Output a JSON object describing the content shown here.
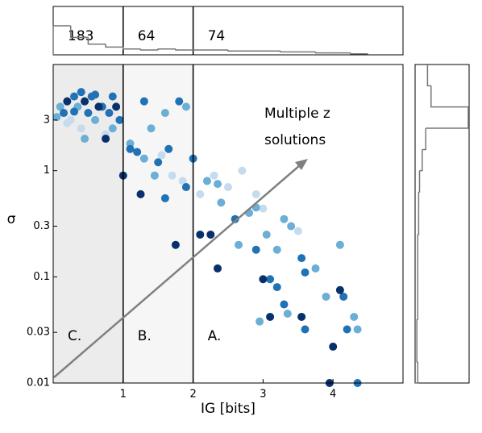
{
  "chart_data": {
    "type": "scatter",
    "xlabel": "IG [bits]",
    "ylabel": "σ",
    "xlim": [
      0,
      5
    ],
    "ylim": [
      0.01,
      10
    ],
    "log_y": true,
    "xticks": [
      1,
      2,
      3,
      4
    ],
    "yticks": [
      0.01,
      0.03,
      0.1,
      0.3,
      1,
      3
    ],
    "boundaries": [
      1,
      2
    ],
    "region_labels": [
      "C.",
      "B.",
      "A."
    ],
    "region_counts": [
      183,
      64,
      74
    ],
    "annotation": [
      "Multiple z",
      "solutions"
    ],
    "series": [
      {
        "color": "#c6dbef",
        "x": [
          0.25,
          0.4,
          0.75,
          0.2,
          1.55,
          1.7,
          1.85,
          2.1,
          2.3,
          2.5,
          2.7,
          3.0,
          2.9,
          3.5
        ],
        "values": [
          3,
          2.5,
          2.2,
          2.8,
          1.4,
          0.9,
          0.8,
          0.6,
          0.9,
          0.7,
          1.0,
          0.44,
          0.6,
          0.27
        ]
      },
      {
        "color": "#6baed6",
        "x": [
          0.1,
          0.35,
          0.6,
          0.85,
          0.45,
          0.05,
          1.1,
          1.4,
          1.6,
          1.9,
          1.3,
          1.45,
          2.2,
          2.4,
          2.8,
          2.35,
          2.65,
          2.9,
          3.05,
          3.3,
          3.4,
          3.75,
          4.1,
          3.2,
          3.35,
          3.9,
          4.3,
          4.35,
          2.95
        ],
        "values": [
          4,
          4,
          3,
          2.5,
          2,
          3.2,
          1.8,
          2.5,
          3.5,
          4,
          1.3,
          0.9,
          0.8,
          0.5,
          0.4,
          0.75,
          0.2,
          0.45,
          0.25,
          0.35,
          0.3,
          0.12,
          0.2,
          0.18,
          0.045,
          0.065,
          0.042,
          0.032,
          0.038
        ]
      },
      {
        "color": "#2171b5",
        "x": [
          0.15,
          0.3,
          0.5,
          0.55,
          0.7,
          0.8,
          0.95,
          0.4,
          0.6,
          0.3,
          0.85,
          1.2,
          1.3,
          1.5,
          1.65,
          1.8,
          2.0,
          1.1,
          1.6,
          1.9,
          2.6,
          3.2,
          3.55,
          3.6,
          3.1,
          3.3,
          4.15,
          4.2,
          3.6,
          2.9,
          4.35
        ],
        "values": [
          3.5,
          5,
          3.5,
          5,
          4,
          3.5,
          3,
          5.5,
          5.2,
          3.6,
          5,
          1.5,
          4.5,
          1.2,
          1.6,
          4.5,
          1.3,
          1.6,
          0.55,
          0.7,
          0.35,
          0.08,
          0.15,
          0.032,
          0.095,
          0.055,
          0.065,
          0.032,
          0.11,
          0.18,
          0.01
        ]
      },
      {
        "color": "#08306b",
        "x": [
          0.2,
          0.45,
          0.65,
          0.9,
          0.75,
          1.0,
          1.25,
          1.75,
          2.1,
          2.25,
          2.35,
          3.0,
          3.1,
          4.1,
          3.95,
          4.0,
          3.55
        ],
        "values": [
          4.5,
          4.5,
          4,
          4,
          2,
          0.9,
          0.6,
          0.2,
          0.25,
          0.25,
          0.12,
          0.095,
          0.042,
          0.075,
          0.01,
          0.022,
          0.042
        ]
      }
    ],
    "top_histogram": {
      "color": "#777777",
      "bins": [
        0,
        0.25,
        0.5,
        0.75,
        1,
        1.25,
        1.5,
        1.75,
        2,
        2.25,
        2.5,
        2.75,
        3,
        3.25,
        3.5,
        3.75,
        4,
        4.25,
        4.5
      ],
      "counts": [
        30,
        18,
        11,
        8,
        6,
        5,
        6,
        5,
        5,
        5,
        4,
        4,
        4,
        3,
        3,
        2,
        2,
        1
      ]
    },
    "right_histogram": {
      "color": "#777777",
      "bins": [
        0.01,
        0.0158,
        0.0251,
        0.0398,
        0.0631,
        0.1,
        0.158,
        0.251,
        0.398,
        0.631,
        1,
        1.58,
        2.51,
        3.98,
        6.31,
        10
      ],
      "counts": [
        3,
        2,
        2,
        3,
        3,
        3,
        3,
        4,
        4,
        5,
        8,
        12,
        60,
        18,
        14
      ]
    }
  }
}
